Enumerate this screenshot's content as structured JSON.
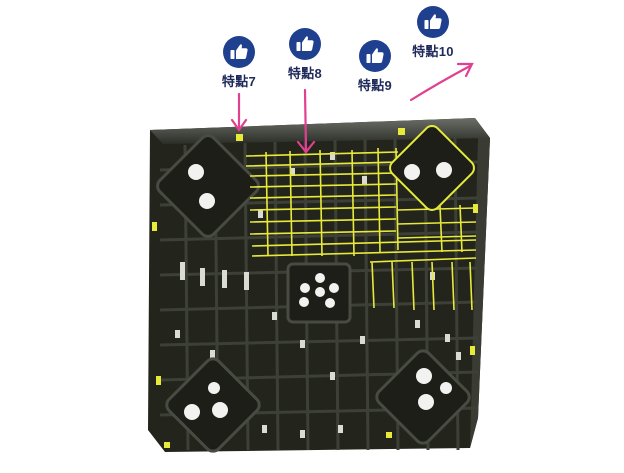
{
  "features": [
    {
      "label": "特點7",
      "icon": "thumbs-up-icon"
    },
    {
      "label": "特點8",
      "icon": "thumbs-up-icon"
    },
    {
      "label": "特點9",
      "icon": "thumbs-up-icon"
    },
    {
      "label": "特點10",
      "icon": "thumbs-up-icon"
    }
  ],
  "colors": {
    "badge": "#1f3f8f",
    "label": "#1f2a5a",
    "arrow": "#e0408f",
    "highlight": "#e8ea3a",
    "pallet": "#23251d"
  }
}
